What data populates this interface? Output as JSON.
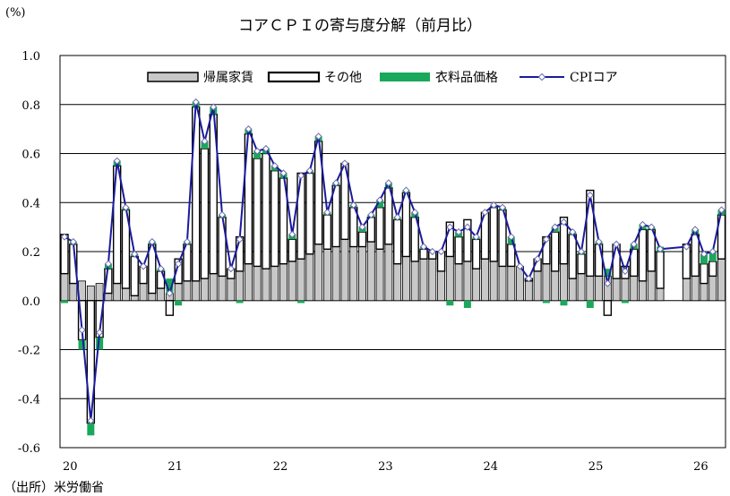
{
  "unit_label": "(%)",
  "source": "（出所）米労働省",
  "colors": {
    "oer": "#c8c8c8",
    "other": "#ffffff",
    "apparel": "#1aa85a",
    "core": "#1a1a9c",
    "marker": "#ffffff",
    "outline": "#000000"
  },
  "chart_data": {
    "type": "bar",
    "title": "コアＣＰＩの寄与度分解（前月比）",
    "ylim": [
      -0.6,
      1.0
    ],
    "yticks": [
      "1.0",
      "0.8",
      "0.6",
      "0.4",
      "0.2",
      "0.0",
      "-0.2",
      "-0.4",
      "-0.6"
    ],
    "year_labels": [
      "20",
      "21",
      "22",
      "23",
      "24",
      "25",
      "26"
    ],
    "grid": true,
    "legend_position": "top",
    "stacked": true,
    "start": "2020-01",
    "series": [
      {
        "name": "帰属家賃",
        "kind": "bar",
        "values": [
          0.11,
          0.07,
          0.08,
          0.06,
          0.07,
          0.03,
          0.07,
          0.05,
          0.02,
          0.07,
          0.03,
          0.05,
          0.03,
          0.07,
          0.08,
          0.08,
          0.09,
          0.11,
          0.1,
          0.09,
          0.12,
          0.15,
          0.14,
          0.13,
          0.14,
          0.15,
          0.16,
          0.17,
          0.19,
          0.23,
          0.21,
          0.22,
          0.25,
          0.22,
          0.22,
          0.24,
          0.21,
          0.23,
          0.15,
          0.18,
          0.16,
          0.17,
          0.17,
          0.12,
          0.18,
          0.15,
          0.16,
          0.13,
          0.17,
          0.16,
          0.14,
          0.14,
          0.14,
          0.08,
          0.12,
          0.15,
          0.12,
          0.15,
          0.09,
          0.11,
          0.1,
          0.1,
          0.1,
          0.09,
          0.09,
          0.1,
          0.08,
          0.12,
          0.05,
          null,
          null,
          0.09,
          0.1,
          0.07,
          0.1,
          0.17
        ]
      },
      {
        "name": "その他",
        "kind": "bar",
        "values": [
          0.16,
          0.16,
          -0.16,
          -0.5,
          -0.15,
          0.1,
          0.48,
          0.32,
          0.16,
          0.07,
          0.2,
          0.07,
          -0.06,
          0.1,
          0.15,
          0.71,
          0.53,
          0.65,
          0.24,
          0.04,
          0.14,
          0.53,
          0.44,
          0.47,
          0.39,
          0.35,
          0.09,
          0.35,
          0.33,
          0.42,
          0.14,
          0.25,
          0.31,
          0.16,
          0.06,
          0.1,
          0.17,
          0.23,
          0.18,
          0.26,
          0.18,
          0.04,
          0.03,
          0.08,
          0.14,
          0.11,
          0.17,
          0.12,
          0.19,
          0.22,
          0.23,
          0.09,
          0.0,
          0.01,
          0.05,
          0.11,
          0.16,
          0.19,
          0.18,
          0.08,
          0.35,
          0.13,
          -0.06,
          0.14,
          0.05,
          0.11,
          0.21,
          0.17,
          0.15,
          null,
          null,
          0.14,
          0.17,
          0.08,
          0.06,
          0.18
        ]
      },
      {
        "name": "衣料品価格",
        "kind": "bar",
        "values": [
          -0.01,
          0.01,
          -0.04,
          -0.05,
          -0.05,
          0.02,
          0.02,
          0.01,
          0.01,
          0.0,
          0.01,
          0.01,
          0.06,
          -0.02,
          0.01,
          0.02,
          0.03,
          0.03,
          0.01,
          0.0,
          -0.01,
          0.02,
          0.03,
          0.02,
          0.02,
          0.02,
          0.02,
          -0.01,
          0.01,
          0.02,
          0.01,
          0.01,
          0.0,
          0.01,
          0.02,
          0.01,
          0.03,
          0.02,
          0.01,
          0.01,
          0.02,
          0.01,
          0.0,
          0.0,
          -0.02,
          0.02,
          -0.03,
          0.01,
          0.0,
          0.01,
          0.01,
          0.03,
          0.0,
          0.0,
          0.0,
          -0.01,
          0.02,
          -0.02,
          0.01,
          0.01,
          -0.03,
          0.01,
          0.03,
          0.0,
          -0.01,
          0.02,
          0.02,
          0.01,
          0.02,
          null,
          null,
          0.0,
          0.02,
          0.04,
          0.04,
          0.02
        ]
      },
      {
        "name": "CPIコア",
        "kind": "line",
        "values": [
          0.26,
          0.24,
          -0.12,
          -0.49,
          -0.13,
          0.15,
          0.57,
          0.38,
          0.19,
          0.14,
          0.24,
          0.13,
          0.03,
          0.15,
          0.24,
          0.81,
          0.65,
          0.79,
          0.35,
          0.13,
          0.25,
          0.7,
          0.61,
          0.62,
          0.55,
          0.52,
          0.27,
          0.51,
          0.53,
          0.67,
          0.36,
          0.48,
          0.56,
          0.39,
          0.3,
          0.35,
          0.41,
          0.48,
          0.34,
          0.45,
          0.36,
          0.22,
          0.2,
          0.2,
          0.3,
          0.28,
          0.3,
          0.26,
          0.36,
          0.39,
          0.38,
          0.26,
          0.14,
          0.09,
          0.17,
          0.25,
          0.3,
          0.32,
          0.28,
          0.2,
          0.43,
          0.24,
          0.07,
          0.23,
          0.12,
          0.23,
          0.31,
          0.3,
          0.21,
          null,
          null,
          0.22,
          0.29,
          0.19,
          0.2,
          0.37
        ]
      }
    ]
  }
}
